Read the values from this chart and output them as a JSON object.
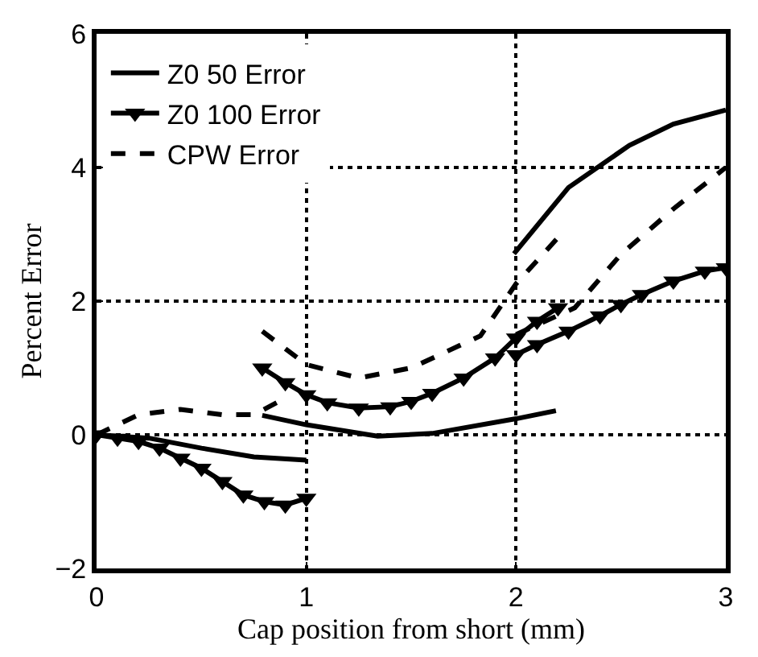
{
  "chart_data": {
    "type": "line",
    "xlabel": "Cap position from short (mm)",
    "ylabel": "Percent Error",
    "xlim": [
      0,
      3
    ],
    "xticks": [
      0,
      1,
      2,
      3
    ],
    "ylim": [
      -2,
      6
    ],
    "yticks": [
      -2,
      0,
      2,
      4,
      6
    ],
    "grid": true,
    "legend": "top left",
    "series": [
      {
        "name": "Z0 50 Error",
        "color": "#000000",
        "line_style": "solid",
        "marker": "none",
        "x": [
          0,
          0.25,
          0.5,
          0.75,
          1.0,
          null,
          0.79,
          1.0,
          1.34,
          1.6,
          2.0,
          2.19,
          null,
          1.99,
          2.25,
          2.54,
          2.75,
          3.0
        ],
        "values": [
          0,
          -0.05,
          -0.2,
          -0.33,
          -0.38,
          null,
          0.29,
          0.15,
          -0.02,
          0.02,
          0.24,
          0.36,
          null,
          2.71,
          3.7,
          4.33,
          4.65,
          4.86
        ]
      },
      {
        "name": "Z0 100 Error",
        "color": "#000000",
        "line_style": "solid",
        "marker": "triangle",
        "x": [
          0,
          0.1,
          0.2,
          0.3,
          0.4,
          0.5,
          0.6,
          0.7,
          0.8,
          0.9,
          1.0,
          null,
          0.79,
          0.9,
          1.0,
          1.1,
          1.25,
          1.4,
          1.5,
          1.6,
          1.75,
          1.9,
          2.0,
          2.1,
          2.2,
          null,
          2.0,
          2.1,
          2.25,
          2.4,
          2.5,
          2.6,
          2.75,
          2.9,
          3.0
        ],
        "values": [
          0,
          -0.05,
          -0.1,
          -0.2,
          -0.35,
          -0.5,
          -0.7,
          -0.9,
          -1.0,
          -1.05,
          -0.95,
          null,
          1.0,
          0.78,
          0.6,
          0.48,
          0.4,
          0.42,
          0.5,
          0.62,
          0.85,
          1.15,
          1.45,
          1.7,
          1.9,
          null,
          1.2,
          1.35,
          1.55,
          1.78,
          1.95,
          2.1,
          2.3,
          2.45,
          2.5
        ]
      },
      {
        "name": "CPW Error",
        "color": "#000000",
        "line_style": "dashed",
        "marker": "none",
        "x": [
          0,
          0.2,
          0.4,
          0.6,
          0.75,
          0.87,
          null,
          0.79,
          1.0,
          1.25,
          1.5,
          1.83,
          2.0,
          2.2,
          null,
          2.0,
          2.28,
          2.5,
          2.75,
          3.0
        ],
        "values": [
          0,
          0.3,
          0.38,
          0.3,
          0.3,
          0.5,
          null,
          1.55,
          1.05,
          0.85,
          1.0,
          1.48,
          2.26,
          2.95,
          null,
          1.5,
          1.9,
          2.7,
          3.38,
          4.0
        ]
      }
    ]
  }
}
